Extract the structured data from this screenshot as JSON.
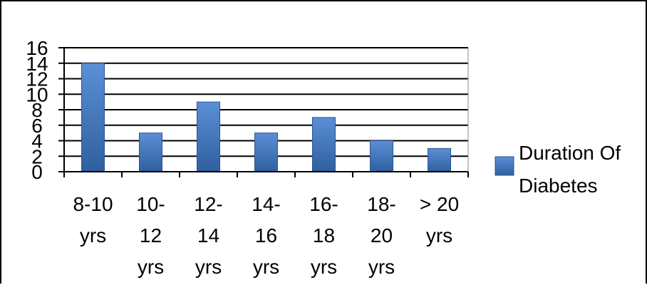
{
  "chart_data": {
    "type": "bar",
    "categories": [
      [
        "8-10",
        "yrs"
      ],
      [
        "10-",
        "12",
        "yrs"
      ],
      [
        "12-",
        "14",
        "yrs"
      ],
      [
        "14-",
        "16",
        "yrs"
      ],
      [
        "16-",
        "18",
        "yrs"
      ],
      [
        "18-",
        "20",
        "yrs"
      ],
      [
        "> 20",
        "yrs"
      ]
    ],
    "series": [
      {
        "name": "Duration Of Diabetes",
        "values": [
          14,
          5,
          9,
          5,
          7,
          4,
          3
        ]
      }
    ],
    "yticks": [
      "0",
      "2",
      "4",
      "6",
      "8",
      "10",
      "12",
      "14",
      "16"
    ],
    "ylim": [
      0,
      16
    ],
    "grid": true,
    "legend_position": "right",
    "legend_label_lines": [
      "Duration Of",
      "Diabetes"
    ],
    "colors": {
      "bar_top": "#5b8fd6",
      "bar_bottom": "#2f5f9e",
      "bar_stroke": "#2a5590",
      "grid": "#000000",
      "axis": "#000000"
    }
  }
}
